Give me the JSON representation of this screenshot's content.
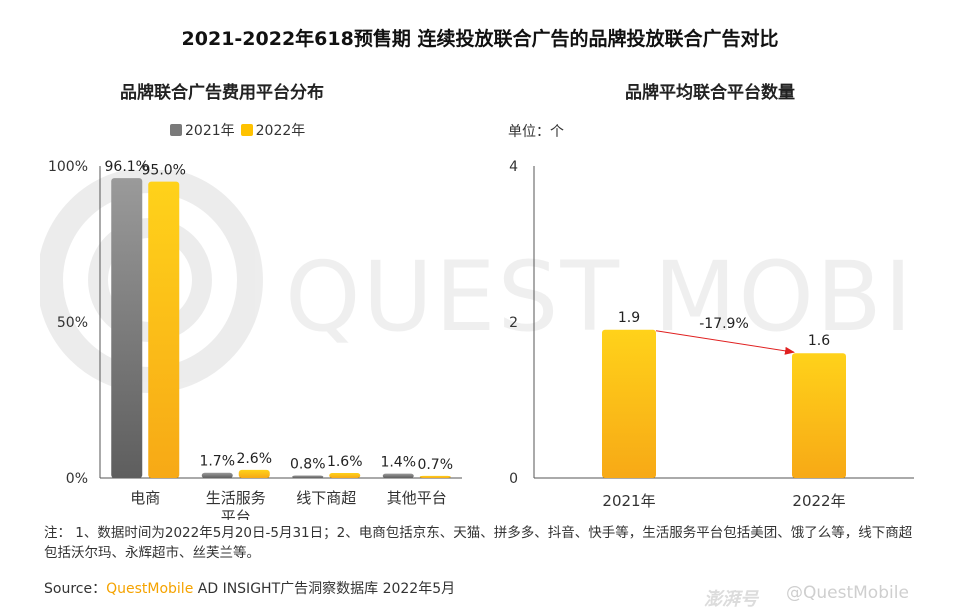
{
  "title": "2021-2022年618预售期 连续投放联合广告的品牌投放联合广告对比",
  "watermark_text": "QUEST MOBILE",
  "colors": {
    "y2021_top": "#9a9a9a",
    "y2021_bottom": "#5e5e5e",
    "y2022_top": "#ffd21a",
    "y2022_bottom": "#f7a916",
    "arrow": "#e02020",
    "axis": "#555555"
  },
  "chart_data": [
    {
      "type": "bar",
      "title": "品牌联合广告费用平台分布",
      "categories": [
        "电商",
        "生活服务\n平台",
        "线下商超",
        "其他平台"
      ],
      "category_lines": [
        [
          "电商"
        ],
        [
          "生活服务",
          "平台"
        ],
        [
          "线下商超"
        ],
        [
          "其他平台"
        ]
      ],
      "series": [
        {
          "name": "2021年",
          "values": [
            96.1,
            1.7,
            0.8,
            1.4
          ],
          "labels": [
            "96.1%",
            "1.7%",
            "0.8%",
            "1.4%"
          ]
        },
        {
          "name": "2022年",
          "values": [
            95.0,
            2.6,
            1.6,
            0.7
          ],
          "labels": [
            "95.0%",
            "2.6%",
            "1.6%",
            "0.7%"
          ]
        }
      ],
      "yticks": [
        "0%",
        "50%",
        "100%"
      ],
      "ytick_values": [
        0,
        50,
        100
      ],
      "ylim": [
        0,
        100
      ],
      "legend_position": "top",
      "grid": false
    },
    {
      "type": "bar",
      "title": "品牌平均联合平台数量",
      "unit": "单位：个",
      "categories": [
        "2021年",
        "2022年"
      ],
      "values": [
        1.9,
        1.6
      ],
      "labels": [
        "1.9",
        "1.6"
      ],
      "annotation": "-17.9%",
      "yticks": [
        "0",
        "2",
        "4"
      ],
      "ytick_values": [
        0,
        2,
        4
      ],
      "ylim": [
        0,
        4
      ],
      "grid": false
    }
  ],
  "note": "注：  1、数据时间为2022年5月20日-5月31日；2、电商包括京东、天猫、拼多多、抖音、快手等，生活服务平台包括美团、饿了么等，线下商超包括沃尔玛、永辉超市、丝芙兰等。",
  "source": {
    "prefix": "Source：",
    "brand": "QuestMobile",
    "rest": " AD INSIGHT广告洞察数据库 2022年5月"
  },
  "footer": {
    "mark": "澎湃号",
    "handle": "@QuestMobile"
  }
}
